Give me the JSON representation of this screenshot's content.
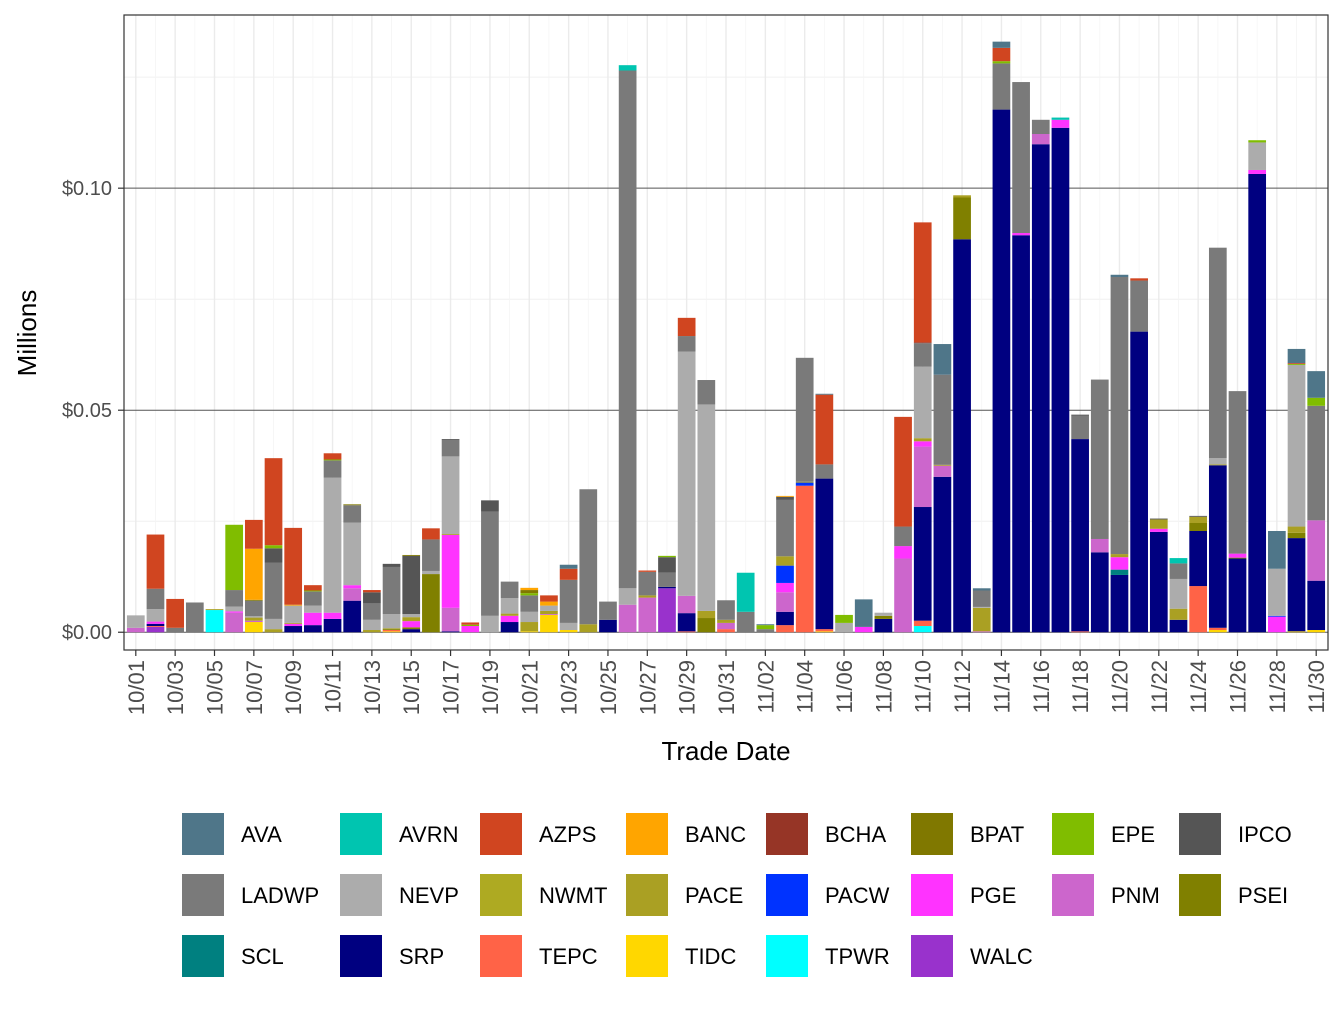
{
  "chart_data": {
    "type": "bar",
    "stacked": true,
    "title": "",
    "xlabel": "Trade Date",
    "ylabel": "Millions",
    "ylim": [
      -0.004,
      0.139
    ],
    "yticks": [
      0,
      0.05,
      0.1
    ],
    "ytick_labels": [
      "$0.00",
      "$0.05",
      "$0.10"
    ],
    "grid": true,
    "legend_position": "bottom",
    "series": [
      {
        "name": "AVA",
        "color": "#4f7689"
      },
      {
        "name": "AVRN",
        "color": "#00c5b0"
      },
      {
        "name": "AZPS",
        "color": "#d04520"
      },
      {
        "name": "BANC",
        "color": "#ffa500"
      },
      {
        "name": "BCHA",
        "color": "#963526"
      },
      {
        "name": "BPAT",
        "color": "#807800"
      },
      {
        "name": "EPE",
        "color": "#80bd00"
      },
      {
        "name": "IPCO",
        "color": "#555555"
      },
      {
        "name": "LADWP",
        "color": "#7a7a7a"
      },
      {
        "name": "NEVP",
        "color": "#acacac"
      },
      {
        "name": "NWMT",
        "color": "#aeaa22"
      },
      {
        "name": "PACE",
        "color": "#aaa023"
      },
      {
        "name": "PACW",
        "color": "#0033ff"
      },
      {
        "name": "PGE",
        "color": "#ff33ff"
      },
      {
        "name": "PNM",
        "color": "#cc66cc"
      },
      {
        "name": "PSEI",
        "color": "#808000"
      },
      {
        "name": "SCL",
        "color": "#008080"
      },
      {
        "name": "SRP",
        "color": "#000080"
      },
      {
        "name": "TEPC",
        "color": "#ff6347"
      },
      {
        "name": "TIDC",
        "color": "#ffd700"
      },
      {
        "name": "TPWR",
        "color": "#00ffff"
      },
      {
        "name": "WALC",
        "color": "#9932cc"
      }
    ],
    "bars": [
      {
        "date": "10/01",
        "values": {
          "PNM": 0.001,
          "NEVP": 0.0028
        }
      },
      {
        "date": "10/02",
        "values": {
          "WALC": 0.0012,
          "TEPC": 0.0002,
          "SRP": 0.0005,
          "PGE": 0.0005,
          "NEVP": 0.0028,
          "LADWP": 0.0046,
          "AZPS": 0.0122
        }
      },
      {
        "date": "10/03",
        "values": {
          "LADWP": 0.001,
          "AZPS": 0.0065
        }
      },
      {
        "date": "10/04",
        "values": {
          "LADWP": 0.0067
        }
      },
      {
        "date": "10/05",
        "values": {
          "TPWR": 0.005,
          "PACE": 0.0002
        }
      },
      {
        "date": "10/06",
        "values": {
          "PNM": 0.0044,
          "PGE": 0.0003,
          "NEVP": 0.0011,
          "LADWP": 0.0037,
          "EPE": 0.0147
        }
      },
      {
        "date": "10/07",
        "values": {
          "TIDC": 0.0023,
          "PNM": 0.0003,
          "PACE": 0.0007,
          "NEVP": 0.0003,
          "LADWP": 0.0035,
          "BPAT": 0.0002,
          "BANC": 0.0115,
          "AZPS": 0.0065
        }
      },
      {
        "date": "10/08",
        "values": {
          "PACE": 0.0007,
          "NEVP": 0.0023,
          "LADWP": 0.0127,
          "IPCO": 0.0032,
          "EPE": 0.0007,
          "AZPS": 0.0196
        }
      },
      {
        "date": "10/09",
        "values": {
          "SRP": 0.0014,
          "PGE": 0.0005,
          "PACE": 0.0002,
          "NEVP": 0.0039,
          "BANC": 0.0002,
          "AZPS": 0.0173
        }
      },
      {
        "date": "10/10",
        "values": {
          "SRP": 0.0016,
          "PGE": 0.0028,
          "NEVP": 0.0016,
          "LADWP": 0.0032,
          "EPE": 0.0002,
          "AZPS": 0.0012
        }
      },
      {
        "date": "10/11",
        "values": {
          "SRP": 0.003,
          "PGE": 0.0014,
          "NEVP": 0.0304,
          "LADWP": 0.0039,
          "EPE": 0.0002,
          "AZPS": 0.0014
        }
      },
      {
        "date": "10/12",
        "values": {
          "SRP": 0.0071,
          "PNM": 0.0028,
          "PGE": 0.0007,
          "NEVP": 0.0141,
          "LADWP": 0.0039,
          "BPAT": 0.0002
        }
      },
      {
        "date": "10/13",
        "values": {
          "PACE": 0.0005,
          "NEVP": 0.0023,
          "LADWP": 0.0037,
          "IPCO": 0.0025,
          "AZPS": 0.0005
        }
      },
      {
        "date": "10/14",
        "values": {
          "TIDC": 0.0002,
          "TEPC": 0.0003,
          "PSEI": 0.0002,
          "PACE": 0.0002,
          "NEVP": 0.0032,
          "LADWP": 0.0106,
          "IPCO": 0.0007
        }
      },
      {
        "date": "10/15",
        "values": {
          "SRP": 0.0007,
          "PSEI": 0.0004,
          "PGE": 0.0014,
          "PACE": 0.0009,
          "NEVP": 0.0007,
          "IPCO": 0.0131,
          "BPAT": 0.0002
        }
      },
      {
        "date": "10/16",
        "values": {
          "PSEI": 0.0131,
          "NEVP": 0.0007,
          "LADWP": 0.0071,
          "AZPS": 0.0025
        }
      },
      {
        "date": "10/17",
        "values": {
          "SRP": 0.0002,
          "PNM": 0.0053,
          "PGE": 0.0164,
          "PACE": 0.0002,
          "NEVP": 0.0175,
          "LADWP": 0.0037,
          "IPCO": 0.0002
        }
      },
      {
        "date": "10/18",
        "values": {
          "PGE": 0.0014,
          "EPE": 0.0003,
          "AZPS": 0.0005
        }
      },
      {
        "date": "10/19",
        "values": {
          "NEVP": 0.0037,
          "LADWP": 0.0235,
          "IPCO": 0.0025
        }
      },
      {
        "date": "10/20",
        "values": {
          "SRP": 0.0023,
          "PGE": 0.0014,
          "PACE": 0.0005,
          "NEVP": 0.0035,
          "LADWP": 0.0037
        }
      },
      {
        "date": "10/21",
        "values": {
          "TIDC": 0.0002,
          "PACE": 0.0021,
          "NEVP": 0.0023,
          "LADWP": 0.0037,
          "EPE": 0.0005,
          "BPAT": 0.0007,
          "BANC": 0.0005
        }
      },
      {
        "date": "10/22",
        "values": {
          "TIDC": 0.0039,
          "PNM": 0.0002,
          "PACE": 0.0007,
          "NEVP": 0.0012,
          "BANC": 0.0009,
          "AZPS": 0.0014
        }
      },
      {
        "date": "10/23",
        "values": {
          "TIDC": 0.0005,
          "NEVP": 0.0016,
          "LADWP": 0.0097,
          "AZPS": 0.0025,
          "AVA": 0.0009
        }
      },
      {
        "date": "10/24",
        "values": {
          "PACE": 0.0018,
          "LADWP": 0.0304
        }
      },
      {
        "date": "10/25",
        "values": {
          "SRP": 0.0028,
          "LADWP": 0.0041
        }
      },
      {
        "date": "10/26",
        "values": {
          "PNM": 0.0062,
          "NEVP": 0.0037,
          "LADWP": 0.1166,
          "AVRN": 0.0012
        }
      },
      {
        "date": "10/27",
        "values": {
          "PNM": 0.0078,
          "PACE": 0.0005,
          "LADWP": 0.0053,
          "AZPS": 0.0003
        }
      },
      {
        "date": "10/28",
        "values": {
          "WALC": 0.0099,
          "SRP": 0.0003,
          "LADWP": 0.0032,
          "IPCO": 0.0035,
          "EPE": 0.0003
        }
      },
      {
        "date": "10/29",
        "values": {
          "TEPC": 0.0002,
          "SRP": 0.0041,
          "PNM": 0.0039,
          "NEVP": 0.055,
          "LADWP": 0.0035,
          "AZPS": 0.0041
        }
      },
      {
        "date": "10/30",
        "values": {
          "PSEI": 0.0032,
          "PACE": 0.0016,
          "NEVP": 0.0465,
          "LADWP": 0.0055
        }
      },
      {
        "date": "10/31",
        "values": {
          "TEPC": 0.0007,
          "PNM": 0.0014,
          "PACE": 0.0007,
          "LADWP": 0.0044
        }
      },
      {
        "date": "11/01",
        "values": {
          "LADWP": 0.0046,
          "AVRN": 0.0088
        }
      },
      {
        "date": "11/02",
        "values": {
          "LADWP": 0.0007,
          "EPE": 0.0009,
          "AVA": 0.0002
        }
      },
      {
        "date": "11/03",
        "values": {
          "TEPC": 0.0016,
          "SRP": 0.003,
          "PNM": 0.0044,
          "PGE": 0.0021,
          "PACW": 0.0039,
          "PACE": 0.0021,
          "LADWP": 0.0127,
          "IPCO": 0.0007,
          "BANC": 0.0002
        }
      },
      {
        "date": "11/04",
        "values": {
          "TEPC": 0.033,
          "PACW": 0.0007,
          "PACE": 0.0002,
          "LADWP": 0.0279
        }
      },
      {
        "date": "11/05",
        "values": {
          "TIDC": 0.0002,
          "TEPC": 0.0005,
          "SRP": 0.0339,
          "LADWP": 0.0032,
          "AZPS": 0.0157,
          "AVA": 0.0002
        }
      },
      {
        "date": "11/06",
        "values": {
          "NEVP": 0.0021,
          "EPE": 0.0018
        }
      },
      {
        "date": "11/07",
        "values": {
          "PGE": 0.0012,
          "AVA": 0.0062
        }
      },
      {
        "date": "11/08",
        "values": {
          "SRP": 0.003,
          "PSEI": 0.0007,
          "NEVP": 0.0007
        }
      },
      {
        "date": "11/09",
        "values": {
          "PNM": 0.0166,
          "PGE": 0.0028,
          "LADWP": 0.0044,
          "AZPS": 0.0247
        }
      },
      {
        "date": "11/10",
        "values": {
          "TPWR": 0.0014,
          "TEPC": 0.0012,
          "SRP": 0.0256,
          "PNM": 0.0136,
          "PGE": 0.0012,
          "PACE": 0.0007,
          "NEVP": 0.0161,
          "LADWP": 0.0053,
          "BCHA": 0.0002,
          "AZPS": 0.027
        }
      },
      {
        "date": "11/11",
        "values": {
          "SRP": 0.035,
          "PNM": 0.0025,
          "PACE": 0.0002,
          "LADWP": 0.0203,
          "AVA": 0.0069
        }
      },
      {
        "date": "11/12",
        "values": {
          "SRP": 0.0885,
          "PSEI": 0.0094,
          "PACE": 0.0005
        }
      },
      {
        "date": "11/13",
        "values": {
          "PNM": 0.0002,
          "PACE": 0.0053,
          "NEVP": 0.0002,
          "LADWP": 0.0037,
          "AVA": 0.0005
        }
      },
      {
        "date": "11/14",
        "values": {
          "SRP": 0.1177,
          "LADWP": 0.0104,
          "EPE": 0.0005,
          "AZPS": 0.003,
          "AVA": 0.0014
        }
      },
      {
        "date": "11/15",
        "values": {
          "SRP": 0.0894,
          "PGE": 0.0005,
          "LADWP": 0.034
        }
      },
      {
        "date": "11/16",
        "values": {
          "SRP": 0.1099,
          "PNM": 0.0023,
          "LADWP": 0.0032
        }
      },
      {
        "date": "11/17",
        "values": {
          "SRP": 0.1136,
          "PGE": 0.0018,
          "AVRN": 0.0005
        }
      },
      {
        "date": "11/18",
        "values": {
          "TEPC": 0.0002,
          "SRP": 0.0433,
          "LADWP": 0.0053,
          "IPCO": 0.0002
        }
      },
      {
        "date": "11/19",
        "values": {
          "SRP": 0.018,
          "PNM": 0.003,
          "LADWP": 0.0359
        }
      },
      {
        "date": "11/20",
        "values": {
          "SRP": 0.0129,
          "SCL": 0.0012,
          "PGE": 0.0028,
          "PACE": 0.0007,
          "LADWP": 0.0624,
          "AVA": 0.0005
        }
      },
      {
        "date": "11/21",
        "values": {
          "SRP": 0.0677,
          "LADWP": 0.0115,
          "AZPS": 0.0005
        }
      },
      {
        "date": "11/22",
        "values": {
          "SRP": 0.0226,
          "PGE": 0.0007,
          "PACE": 0.0021,
          "IPCO": 0.0002
        }
      },
      {
        "date": "11/23",
        "values": {
          "SRP": 0.0028,
          "PACE": 0.0025,
          "NEVP": 0.0067,
          "LADWP": 0.0035,
          "AVRN": 0.0012
        }
      },
      {
        "date": "11/24",
        "values": {
          "TEPC": 0.0104,
          "SRP": 0.0124,
          "PSEI": 0.0018,
          "PACE": 0.0014,
          "IPCO": 0.0002
        }
      },
      {
        "date": "11/25",
        "values": {
          "TIDC": 0.0005,
          "TEPC": 0.0005,
          "SRP": 0.0366,
          "PACE": 0.0002,
          "NEVP": 0.0014,
          "LADWP": 0.0474
        }
      },
      {
        "date": "11/26",
        "values": {
          "SRP": 0.0166,
          "PSEI": 0.0002,
          "PGE": 0.0009,
          "LADWP": 0.0366
        }
      },
      {
        "date": "11/27",
        "values": {
          "SRP": 0.1032,
          "PGE": 0.0009,
          "NEVP": 0.0062,
          "EPE": 0.0005
        }
      },
      {
        "date": "11/28",
        "values": {
          "PGE": 0.0035,
          "PACW": 0.0002,
          "NEVP": 0.0106,
          "AVA": 0.0085
        }
      },
      {
        "date": "11/29",
        "values": {
          "TIDC": 0.0002,
          "SRP": 0.021,
          "PSEI": 0.0012,
          "PACE": 0.0014,
          "NEVP": 0.0364,
          "EPE": 0.0002,
          "AZPS": 0.0002,
          "AVA": 0.0032
        }
      },
      {
        "date": "11/30",
        "values": {
          "TIDC": 0.0005,
          "SRP": 0.0111,
          "PNM": 0.0136,
          "LADWP": 0.0258,
          "EPE": 0.0018,
          "AVA": 0.006
        }
      }
    ]
  }
}
